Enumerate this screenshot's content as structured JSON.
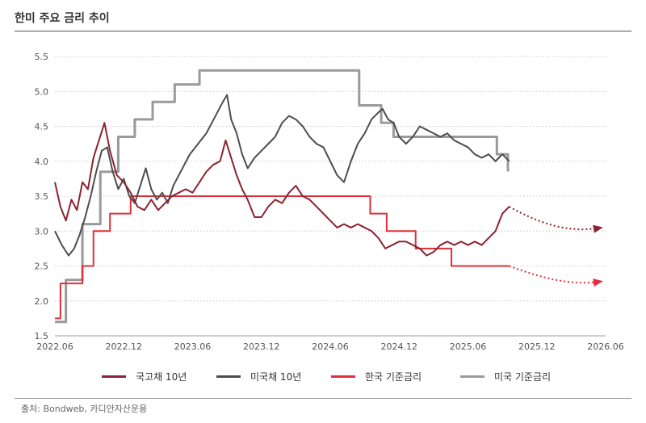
{
  "title": "한미 주요 금리 추이",
  "source": "출처: Bondweb, 카디안자산운용",
  "chart_data": {
    "type": "line",
    "xlabel": "",
    "ylabel": "",
    "ylim": [
      1.5,
      5.5
    ],
    "yticks": [
      "1.5",
      "2.0",
      "2.5",
      "3.0",
      "3.5",
      "4.0",
      "4.5",
      "5.0",
      "5.5"
    ],
    "xticks": [
      "2022.06",
      "2022.12",
      "2023.06",
      "2023.12",
      "2024.06",
      "2024.12",
      "2025.06",
      "2025.12",
      "2026.06",
      "2026.06"
    ],
    "grid": "horizontal dotted",
    "legend_position": "bottom",
    "series": [
      {
        "name": "국고채 10년",
        "color": "#8b2332",
        "style": "solid",
        "points": [
          [
            2022.5,
            3.7
          ],
          [
            2022.54,
            3.35
          ],
          [
            2022.58,
            3.15
          ],
          [
            2022.62,
            3.45
          ],
          [
            2022.66,
            3.3
          ],
          [
            2022.7,
            3.7
          ],
          [
            2022.74,
            3.6
          ],
          [
            2022.78,
            4.05
          ],
          [
            2022.82,
            4.3
          ],
          [
            2022.86,
            4.55
          ],
          [
            2022.9,
            4.15
          ],
          [
            2022.95,
            3.8
          ],
          [
            2023.0,
            3.7
          ],
          [
            2023.05,
            3.55
          ],
          [
            2023.1,
            3.35
          ],
          [
            2023.15,
            3.3
          ],
          [
            2023.2,
            3.45
          ],
          [
            2023.25,
            3.3
          ],
          [
            2023.3,
            3.4
          ],
          [
            2023.35,
            3.5
          ],
          [
            2023.4,
            3.55
          ],
          [
            2023.45,
            3.6
          ],
          [
            2023.5,
            3.55
          ],
          [
            2023.55,
            3.7
          ],
          [
            2023.6,
            3.85
          ],
          [
            2023.65,
            3.95
          ],
          [
            2023.7,
            4.0
          ],
          [
            2023.74,
            4.3
          ],
          [
            2023.78,
            4.05
          ],
          [
            2023.82,
            3.8
          ],
          [
            2023.86,
            3.6
          ],
          [
            2023.9,
            3.45
          ],
          [
            2023.95,
            3.2
          ],
          [
            2024.0,
            3.2
          ],
          [
            2024.05,
            3.35
          ],
          [
            2024.1,
            3.45
          ],
          [
            2024.15,
            3.4
          ],
          [
            2024.2,
            3.55
          ],
          [
            2024.25,
            3.65
          ],
          [
            2024.3,
            3.5
          ],
          [
            2024.35,
            3.45
          ],
          [
            2024.4,
            3.35
          ],
          [
            2024.45,
            3.25
          ],
          [
            2024.5,
            3.15
          ],
          [
            2024.55,
            3.05
          ],
          [
            2024.6,
            3.1
          ],
          [
            2024.65,
            3.05
          ],
          [
            2024.7,
            3.1
          ],
          [
            2024.75,
            3.05
          ],
          [
            2024.8,
            3.0
          ],
          [
            2024.85,
            2.9
          ],
          [
            2024.9,
            2.75
          ],
          [
            2024.95,
            2.8
          ],
          [
            2025.0,
            2.85
          ],
          [
            2025.05,
            2.85
          ],
          [
            2025.1,
            2.8
          ],
          [
            2025.15,
            2.75
          ],
          [
            2025.2,
            2.65
          ],
          [
            2025.25,
            2.7
          ],
          [
            2025.3,
            2.8
          ],
          [
            2025.35,
            2.85
          ],
          [
            2025.4,
            2.8
          ],
          [
            2025.45,
            2.85
          ],
          [
            2025.5,
            2.8
          ],
          [
            2025.55,
            2.85
          ],
          [
            2025.6,
            2.8
          ],
          [
            2025.65,
            2.9
          ],
          [
            2025.7,
            3.0
          ],
          [
            2025.75,
            3.25
          ],
          [
            2025.8,
            3.35
          ]
        ]
      },
      {
        "name": "미국채 10년",
        "color": "#4d4d4d",
        "style": "solid",
        "points": [
          [
            2022.5,
            3.0
          ],
          [
            2022.55,
            2.8
          ],
          [
            2022.6,
            2.65
          ],
          [
            2022.64,
            2.75
          ],
          [
            2022.68,
            2.95
          ],
          [
            2022.72,
            3.2
          ],
          [
            2022.76,
            3.5
          ],
          [
            2022.8,
            3.85
          ],
          [
            2022.84,
            4.15
          ],
          [
            2022.88,
            4.2
          ],
          [
            2022.92,
            3.85
          ],
          [
            2022.96,
            3.6
          ],
          [
            2023.0,
            3.75
          ],
          [
            2023.04,
            3.5
          ],
          [
            2023.08,
            3.4
          ],
          [
            2023.12,
            3.65
          ],
          [
            2023.16,
            3.9
          ],
          [
            2023.2,
            3.6
          ],
          [
            2023.24,
            3.45
          ],
          [
            2023.28,
            3.55
          ],
          [
            2023.32,
            3.4
          ],
          [
            2023.36,
            3.65
          ],
          [
            2023.4,
            3.8
          ],
          [
            2023.44,
            3.95
          ],
          [
            2023.48,
            4.1
          ],
          [
            2023.52,
            4.2
          ],
          [
            2023.56,
            4.3
          ],
          [
            2023.6,
            4.4
          ],
          [
            2023.64,
            4.55
          ],
          [
            2023.68,
            4.7
          ],
          [
            2023.72,
            4.85
          ],
          [
            2023.75,
            4.95
          ],
          [
            2023.78,
            4.6
          ],
          [
            2023.82,
            4.4
          ],
          [
            2023.86,
            4.1
          ],
          [
            2023.9,
            3.9
          ],
          [
            2023.95,
            4.05
          ],
          [
            2024.0,
            4.15
          ],
          [
            2024.05,
            4.25
          ],
          [
            2024.1,
            4.35
          ],
          [
            2024.15,
            4.55
          ],
          [
            2024.2,
            4.65
          ],
          [
            2024.25,
            4.6
          ],
          [
            2024.3,
            4.5
          ],
          [
            2024.35,
            4.35
          ],
          [
            2024.4,
            4.25
          ],
          [
            2024.45,
            4.2
          ],
          [
            2024.5,
            4.0
          ],
          [
            2024.55,
            3.8
          ],
          [
            2024.6,
            3.7
          ],
          [
            2024.65,
            4.0
          ],
          [
            2024.7,
            4.25
          ],
          [
            2024.75,
            4.4
          ],
          [
            2024.8,
            4.6
          ],
          [
            2024.85,
            4.7
          ],
          [
            2024.88,
            4.75
          ],
          [
            2024.92,
            4.6
          ],
          [
            2024.96,
            4.55
          ],
          [
            2025.0,
            4.35
          ],
          [
            2025.05,
            4.25
          ],
          [
            2025.1,
            4.35
          ],
          [
            2025.15,
            4.5
          ],
          [
            2025.2,
            4.45
          ],
          [
            2025.25,
            4.4
          ],
          [
            2025.3,
            4.35
          ],
          [
            2025.35,
            4.4
          ],
          [
            2025.4,
            4.3
          ],
          [
            2025.45,
            4.25
          ],
          [
            2025.5,
            4.2
          ],
          [
            2025.55,
            4.1
          ],
          [
            2025.6,
            4.05
          ],
          [
            2025.65,
            4.1
          ],
          [
            2025.7,
            4.0
          ],
          [
            2025.75,
            4.1
          ],
          [
            2025.8,
            4.0
          ]
        ]
      },
      {
        "name": "한국 기준금리",
        "color": "#e02f3a",
        "style": "step",
        "points": [
          [
            2022.5,
            1.75
          ],
          [
            2022.54,
            2.25
          ],
          [
            2022.7,
            2.5
          ],
          [
            2022.78,
            3.0
          ],
          [
            2022.9,
            3.25
          ],
          [
            2023.05,
            3.5
          ],
          [
            2024.79,
            3.25
          ],
          [
            2024.91,
            3.0
          ],
          [
            2025.12,
            2.75
          ],
          [
            2025.38,
            2.5
          ],
          [
            2025.8,
            2.5
          ]
        ]
      },
      {
        "name": "미국 기준금리",
        "color": "#9a9a9a",
        "style": "step",
        "points": [
          [
            2022.5,
            1.7
          ],
          [
            2022.58,
            2.3
          ],
          [
            2022.7,
            3.1
          ],
          [
            2022.83,
            3.85
          ],
          [
            2022.96,
            4.35
          ],
          [
            2023.08,
            4.6
          ],
          [
            2023.21,
            4.85
          ],
          [
            2023.37,
            5.1
          ],
          [
            2023.55,
            5.3
          ],
          [
            2024.71,
            4.8
          ],
          [
            2024.87,
            4.55
          ],
          [
            2024.96,
            4.35
          ],
          [
            2025.71,
            4.1
          ],
          [
            2025.79,
            3.87
          ],
          [
            2025.8,
            3.87
          ]
        ]
      }
    ],
    "projections": [
      {
        "color": "#8b2332",
        "points": [
          [
            2025.8,
            3.35
          ],
          [
            2026.07,
            3.05
          ],
          [
            2026.27,
            2.98
          ],
          [
            2026.47,
            3.05
          ]
        ]
      },
      {
        "color": "#e02f3a",
        "points": [
          [
            2025.8,
            2.5
          ],
          [
            2026.07,
            2.3
          ],
          [
            2026.27,
            2.22
          ],
          [
            2026.47,
            2.28
          ]
        ]
      }
    ]
  }
}
